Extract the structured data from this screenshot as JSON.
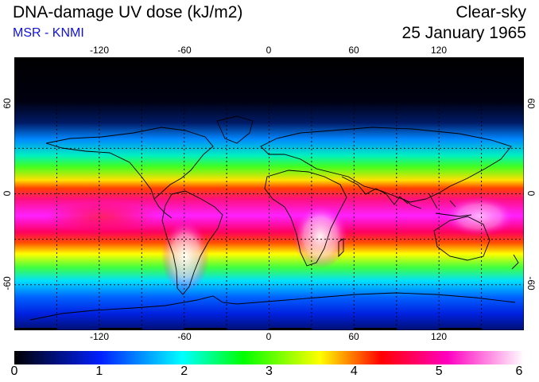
{
  "header": {
    "title": "DNA-damage UV dose (kJ/m2)",
    "subtitle": "MSR - KNMI",
    "condition": "Clear-sky",
    "date": "25 January 1965"
  },
  "map": {
    "lon_ticks": [
      -120,
      -60,
      0,
      60,
      120
    ],
    "lon_tick_labels": [
      "-120",
      "-60",
      "0",
      "60",
      "120"
    ],
    "lat_ticks": [
      60,
      0,
      -60
    ],
    "lat_tick_labels": [
      "60",
      "0",
      "-60"
    ],
    "lon_range": [
      -180,
      180
    ],
    "lat_range": [
      -90,
      90
    ],
    "gridlines": "dotted"
  },
  "colorbar": {
    "min": 0,
    "max": 6,
    "labels": [
      "0",
      "1",
      "2",
      "3",
      "4",
      "5",
      "6"
    ],
    "colors": [
      "#000000",
      "#0010ff",
      "#00ffff",
      "#00ff00",
      "#ffff00",
      "#ff0000",
      "#ff00ff",
      "#ffffff"
    ]
  }
}
